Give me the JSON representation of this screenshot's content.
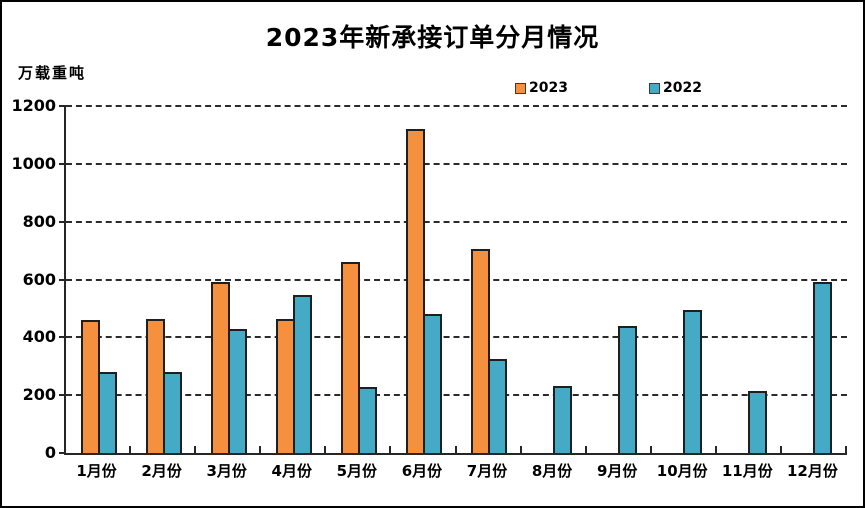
{
  "chart_data": {
    "type": "bar",
    "title": "2023年新承接订单分月情况",
    "ylabel": "万载重吨",
    "xlabel": "",
    "categories": [
      "1月份",
      "2月份",
      "3月份",
      "4月份",
      "5月份",
      "6月份",
      "7月份",
      "8月份",
      "9月份",
      "10月份",
      "11月份",
      "12月份"
    ],
    "series": [
      {
        "name": "2023",
        "color": "#F5913E",
        "values": [
          460,
          465,
          590,
          465,
          660,
          1120,
          705,
          null,
          null,
          null,
          null,
          null
        ]
      },
      {
        "name": "2022",
        "color": "#45AAC6",
        "values": [
          280,
          280,
          430,
          545,
          228,
          480,
          325,
          232,
          440,
          493,
          215,
          590
        ]
      }
    ],
    "ylim": [
      0,
      1200
    ],
    "yticks": [
      0,
      200,
      400,
      600,
      800,
      1000,
      1200
    ],
    "grid": "horizontal-dashed",
    "legend_position": "top-center",
    "bar_border_color": "#1f1f1f"
  }
}
